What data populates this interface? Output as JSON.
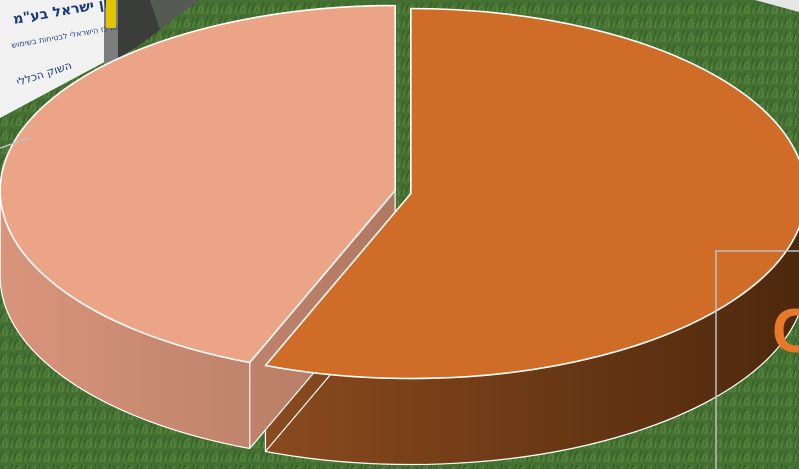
{
  "background": {
    "banner": {
      "line1": "הירגון ישראל בע\"מ",
      "line2": "המרכז הישראלי לבטיחות בשימוש",
      "line3": "השוק הכללי"
    }
  },
  "chart_data": {
    "type": "pie",
    "style": "3d-exploded",
    "slices": [
      {
        "value": 56,
        "color": "#cf6c27",
        "side_color": "#6a3512"
      },
      {
        "value": 44,
        "color": "#eca487",
        "side_color": "#c98570"
      }
    ],
    "partial_label": "C",
    "partial_label_color": "#e8782a"
  }
}
